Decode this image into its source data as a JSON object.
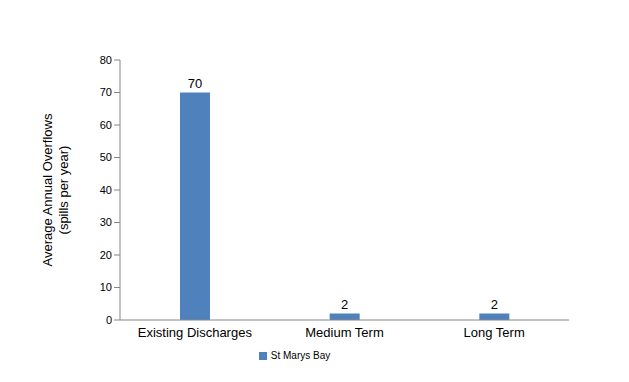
{
  "chart_data": {
    "type": "bar",
    "y_label": "Average Annual Overflows (spills per year)",
    "categories": [
      "Existing Discharges",
      "Medium Term",
      "Long Term"
    ],
    "series": [
      {
        "name": "St Marys Bay",
        "color": "#4f81bd",
        "values": [
          70,
          2,
          2
        ]
      }
    ],
    "ylim": [
      0,
      80
    ],
    "yticks": [
      0,
      10,
      20,
      30,
      40,
      50,
      60,
      70,
      80
    ],
    "grid": false,
    "legend": "bottom",
    "data_labels": true
  }
}
